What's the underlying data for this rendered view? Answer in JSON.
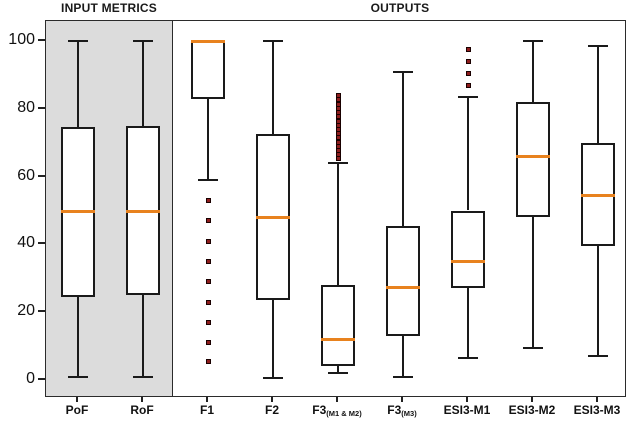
{
  "headers": {
    "input_metrics": "INPUT METRICS",
    "outputs": "OUTPUTS"
  },
  "colors": {
    "median": "#e8821e",
    "box_border": "#1a1a1a",
    "input_panel_bg": "#dcdcdc",
    "outlier_fill": "#8f1d1d",
    "outlier_border": "#190000",
    "axis": "#222222"
  },
  "chart_data": {
    "type": "boxplot",
    "title": "",
    "ylabel": "",
    "xlabel": "",
    "ylim": [
      0,
      100
    ],
    "yticks": [
      0,
      20,
      40,
      60,
      80,
      100
    ],
    "grid": false,
    "legend": "none",
    "panels": [
      {
        "name": "INPUT METRICS",
        "groups": [
          "PoF",
          "RoF"
        ]
      },
      {
        "name": "OUTPUTS",
        "groups": [
          "F1",
          "F2",
          "F3(M1 & M2)",
          "F3(M3)",
          "ESI3-M1",
          "ESI3-M2",
          "ESI3-M3"
        ]
      }
    ],
    "groups": [
      {
        "label": "PoF",
        "sub": "",
        "panel": "input",
        "low": 1,
        "q1": 24.5,
        "median": 50,
        "q3": 74.5,
        "high": 100,
        "outliers": []
      },
      {
        "label": "RoF",
        "sub": "",
        "panel": "input",
        "low": 1,
        "q1": 25,
        "median": 50,
        "q3": 75,
        "high": 100,
        "outliers": []
      },
      {
        "label": "F1",
        "sub": "",
        "panel": "output",
        "low": 59,
        "q1": 83,
        "median": 100,
        "q3": 100,
        "high": 100,
        "outliers": [
          53,
          47,
          41,
          35,
          29,
          23,
          17,
          11,
          5.5
        ]
      },
      {
        "label": "F2",
        "sub": "",
        "panel": "output",
        "low": 0.5,
        "q1": 23.5,
        "median": 48,
        "q3": 72.5,
        "high": 100,
        "outliers": []
      },
      {
        "label": "F3",
        "sub": "(M1 & M2)",
        "panel": "output",
        "low": 2,
        "q1": 4,
        "median": 12,
        "q3": 28,
        "high": 64,
        "outliers": [
          65.2,
          66.4,
          67.7,
          68.9,
          70.2,
          71.4,
          72.7,
          73.9,
          75.2,
          76.4,
          77.7,
          78.9,
          80.2,
          81.4,
          82.7,
          84
        ]
      },
      {
        "label": "F3",
        "sub": "(M3)",
        "panel": "output",
        "low": 1,
        "q1": 13,
        "median": 27.5,
        "q3": 45.5,
        "high": 91,
        "outliers": []
      },
      {
        "label": "ESI3-M1",
        "sub": "",
        "panel": "output",
        "low": 6.5,
        "q1": 27,
        "median": 35,
        "q3": 50,
        "high": 83.5,
        "outliers": [
          87,
          90.5,
          94,
          97.5
        ]
      },
      {
        "label": "ESI3-M2",
        "sub": "",
        "panel": "output",
        "low": 9.5,
        "q1": 48,
        "median": 66,
        "q3": 82,
        "high": 100,
        "outliers": []
      },
      {
        "label": "ESI3-M3",
        "sub": "",
        "panel": "output",
        "low": 7,
        "q1": 39.5,
        "median": 54.5,
        "q3": 70,
        "high": 98.5,
        "outliers": []
      }
    ]
  }
}
